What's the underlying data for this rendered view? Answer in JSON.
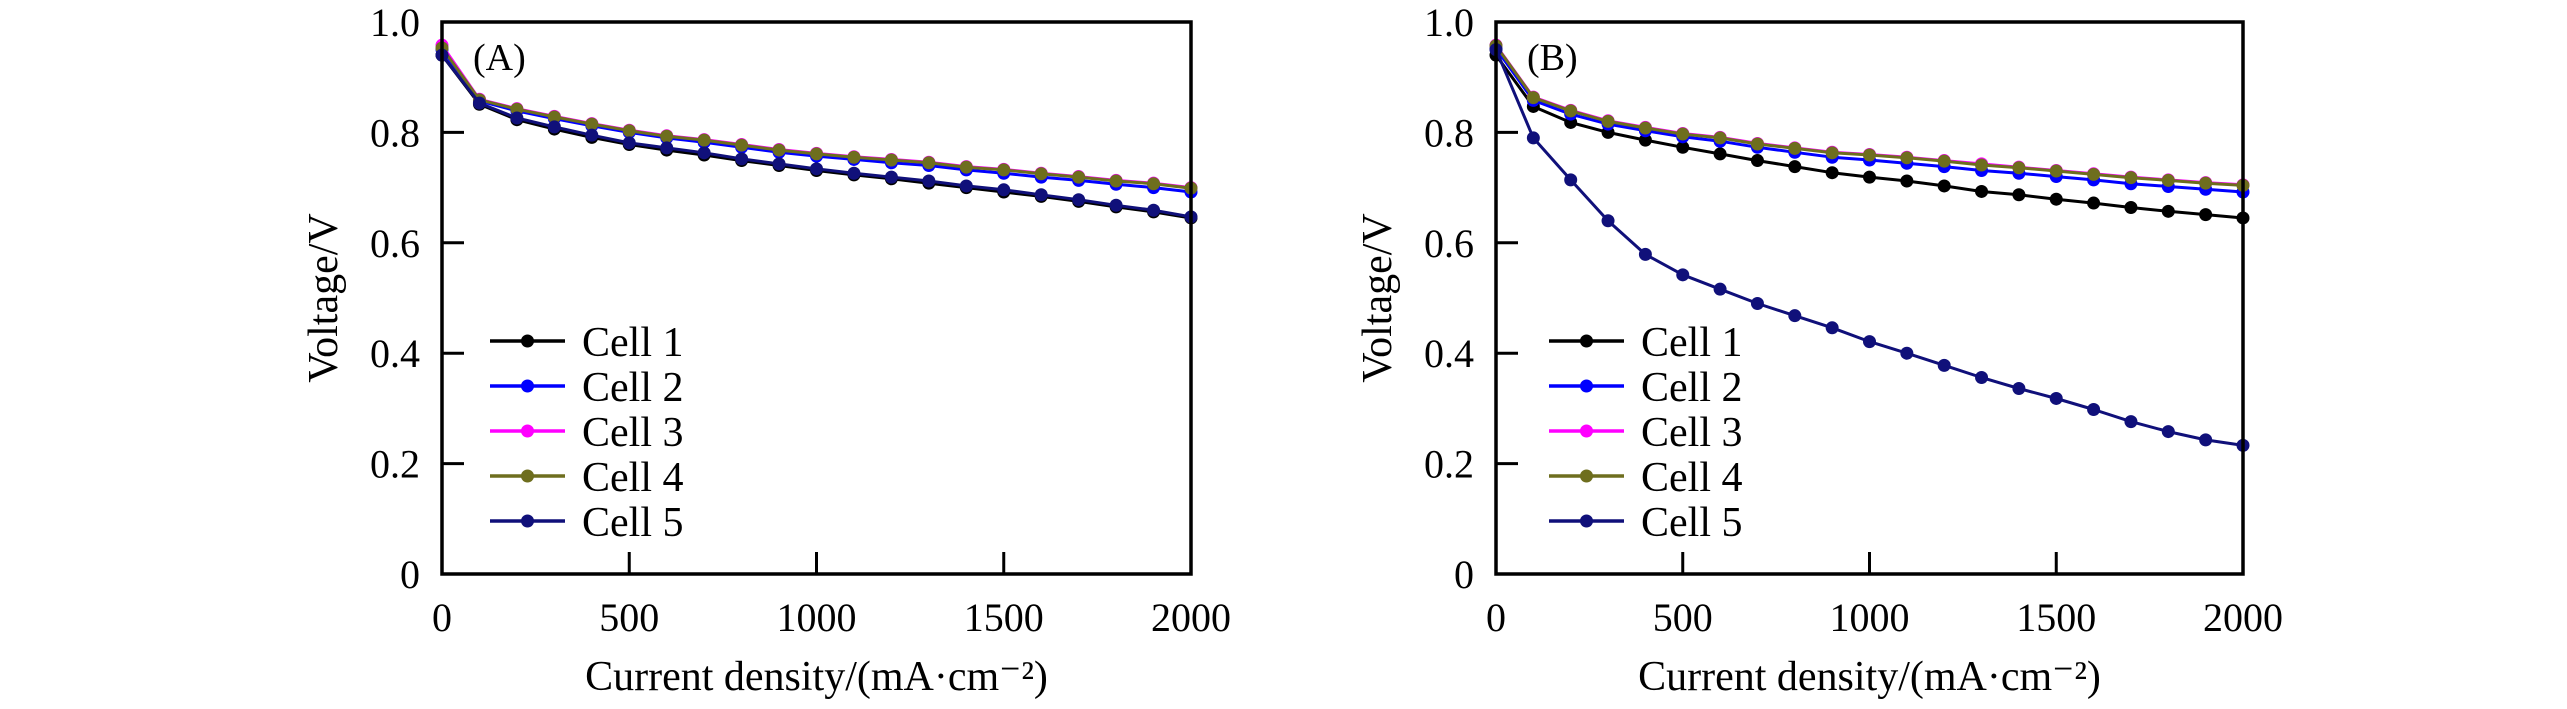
{
  "chart_data": [
    {
      "type": "line",
      "panel_label": "(A)",
      "xlabel": "Current density/(mA·cm⁻²)",
      "ylabel": "Voltage/V",
      "xlim": [
        0,
        2000
      ],
      "ylim": [
        0,
        1.0
      ],
      "xticks": [
        0,
        500,
        1000,
        1500,
        2000
      ],
      "xtick_labels": [
        "0",
        "500",
        "1000",
        "1500",
        "2000"
      ],
      "yticks": [
        0,
        0.2,
        0.4,
        0.6,
        0.8,
        1.0
      ],
      "ytick_labels": [
        "0",
        "0.2",
        "0.4",
        "0.6",
        "0.8",
        "1.0"
      ],
      "grid": false,
      "legend_position": "lower-left",
      "x": [
        0,
        100,
        200,
        300,
        400,
        500,
        600,
        700,
        800,
        900,
        1000,
        1100,
        1200,
        1300,
        1400,
        1500,
        1600,
        1700,
        1800,
        1900,
        2000
      ],
      "series": [
        {
          "name": "Cell 1",
          "color": "#000000",
          "values": [
            0.94,
            0.851,
            0.823,
            0.806,
            0.791,
            0.778,
            0.768,
            0.759,
            0.749,
            0.74,
            0.731,
            0.723,
            0.716,
            0.708,
            0.7,
            0.692,
            0.684,
            0.675,
            0.665,
            0.656,
            0.645
          ]
        },
        {
          "name": "Cell 2",
          "color": "#0000ff",
          "values": [
            0.95,
            0.857,
            0.839,
            0.825,
            0.812,
            0.8,
            0.79,
            0.782,
            0.773,
            0.764,
            0.757,
            0.751,
            0.745,
            0.74,
            0.732,
            0.726,
            0.719,
            0.713,
            0.706,
            0.7,
            0.692
          ]
        },
        {
          "name": "Cell 3",
          "color": "#ff00ff",
          "values": [
            0.958,
            0.86,
            0.843,
            0.829,
            0.816,
            0.804,
            0.794,
            0.787,
            0.778,
            0.769,
            0.762,
            0.756,
            0.751,
            0.746,
            0.738,
            0.733,
            0.726,
            0.72,
            0.713,
            0.708,
            0.7
          ]
        },
        {
          "name": "Cell 4",
          "color": "#6e6e1e",
          "values": [
            0.953,
            0.859,
            0.842,
            0.828,
            0.815,
            0.803,
            0.793,
            0.786,
            0.777,
            0.768,
            0.761,
            0.755,
            0.75,
            0.745,
            0.737,
            0.732,
            0.725,
            0.719,
            0.712,
            0.707,
            0.699
          ]
        },
        {
          "name": "Cell 5",
          "color": "#10107a",
          "values": [
            0.94,
            0.853,
            0.826,
            0.81,
            0.795,
            0.781,
            0.772,
            0.763,
            0.752,
            0.743,
            0.734,
            0.726,
            0.719,
            0.712,
            0.703,
            0.696,
            0.687,
            0.678,
            0.668,
            0.659,
            0.647
          ]
        }
      ]
    },
    {
      "type": "line",
      "panel_label": "(B)",
      "xlabel": "Current density/(mA·cm⁻²)",
      "ylabel": "Voltage/V",
      "xlim": [
        0,
        2000
      ],
      "ylim": [
        0,
        1.0
      ],
      "xticks": [
        0,
        500,
        1000,
        1500,
        2000
      ],
      "xtick_labels": [
        "0",
        "500",
        "1000",
        "1500",
        "2000"
      ],
      "yticks": [
        0,
        0.2,
        0.4,
        0.6,
        0.8,
        1.0
      ],
      "ytick_labels": [
        "0",
        "0.2",
        "0.4",
        "0.6",
        "0.8",
        "1.0"
      ],
      "grid": false,
      "legend_position": "lower-left",
      "x": [
        0,
        100,
        200,
        300,
        400,
        500,
        600,
        700,
        800,
        900,
        1000,
        1100,
        1200,
        1300,
        1400,
        1500,
        1600,
        1700,
        1800,
        1900,
        2000
      ],
      "series": [
        {
          "name": "Cell 1",
          "color": "#000000",
          "values": [
            0.94,
            0.847,
            0.818,
            0.8,
            0.786,
            0.773,
            0.761,
            0.749,
            0.738,
            0.727,
            0.719,
            0.712,
            0.703,
            0.693,
            0.687,
            0.679,
            0.672,
            0.664,
            0.657,
            0.651,
            0.645
          ]
        },
        {
          "name": "Cell 2",
          "color": "#0000ff",
          "values": [
            0.952,
            0.858,
            0.833,
            0.815,
            0.803,
            0.792,
            0.784,
            0.773,
            0.764,
            0.755,
            0.75,
            0.744,
            0.738,
            0.731,
            0.726,
            0.72,
            0.714,
            0.707,
            0.702,
            0.697,
            0.692
          ]
        },
        {
          "name": "Cell 3",
          "color": "#ff00ff",
          "values": [
            0.958,
            0.864,
            0.84,
            0.821,
            0.809,
            0.798,
            0.791,
            0.78,
            0.772,
            0.764,
            0.76,
            0.755,
            0.749,
            0.743,
            0.737,
            0.731,
            0.725,
            0.719,
            0.714,
            0.709,
            0.705
          ]
        },
        {
          "name": "Cell 4",
          "color": "#6e6e1e",
          "values": [
            0.957,
            0.863,
            0.839,
            0.82,
            0.808,
            0.797,
            0.79,
            0.779,
            0.771,
            0.763,
            0.759,
            0.754,
            0.748,
            0.741,
            0.736,
            0.73,
            0.724,
            0.718,
            0.713,
            0.708,
            0.704
          ]
        },
        {
          "name": "Cell 5",
          "color": "#10107a",
          "values": [
            0.95,
            0.79,
            0.714,
            0.64,
            0.579,
            0.542,
            0.516,
            0.49,
            0.468,
            0.446,
            0.421,
            0.4,
            0.378,
            0.356,
            0.336,
            0.318,
            0.298,
            0.276,
            0.258,
            0.243,
            0.233
          ]
        }
      ]
    }
  ]
}
